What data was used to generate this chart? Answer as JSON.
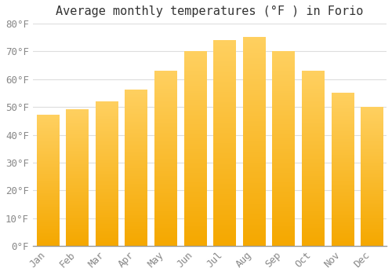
{
  "title": "Average monthly temperatures (°F ) in Forio",
  "months": [
    "Jan",
    "Feb",
    "Mar",
    "Apr",
    "May",
    "Jun",
    "Jul",
    "Aug",
    "Sep",
    "Oct",
    "Nov",
    "Dec"
  ],
  "values": [
    47,
    49,
    52,
    56,
    63,
    70,
    74,
    75,
    70,
    63,
    55,
    50
  ],
  "bar_color_top": "#FFD060",
  "bar_color_bottom": "#F5A800",
  "background_color": "#FFFFFF",
  "grid_color": "#DDDDDD",
  "tick_label_color": "#888888",
  "title_color": "#333333",
  "ylim": [
    0,
    80
  ],
  "yticks": [
    0,
    10,
    20,
    30,
    40,
    50,
    60,
    70,
    80
  ],
  "title_fontsize": 11,
  "tick_fontsize": 9,
  "bar_width": 0.75
}
